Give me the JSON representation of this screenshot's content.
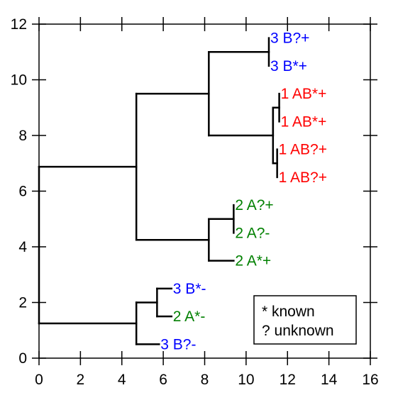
{
  "chart_data": {
    "type": "dendrogram",
    "xlim": [
      0,
      16
    ],
    "ylim": [
      0,
      12
    ],
    "x_ticks": [
      0,
      2,
      4,
      6,
      8,
      10,
      12,
      14,
      16
    ],
    "y_ticks": [
      0,
      2,
      4,
      6,
      8,
      10,
      12
    ],
    "leaves": [
      {
        "label": "3 B?+",
        "x": 11.1,
        "y": 11.5,
        "color": "#0000ff"
      },
      {
        "label": "3 B*+",
        "x": 11.1,
        "y": 10.5,
        "color": "#0000ff"
      },
      {
        "label": "1 AB*+",
        "x": 11.6,
        "y": 9.5,
        "color": "#ff0000"
      },
      {
        "label": "1 AB*+",
        "x": 11.6,
        "y": 8.5,
        "color": "#ff0000"
      },
      {
        "label": "1 AB?+",
        "x": 11.5,
        "y": 7.5,
        "color": "#ff0000"
      },
      {
        "label": "1 AB?+",
        "x": 11.5,
        "y": 6.5,
        "color": "#ff0000"
      },
      {
        "label": "2 A?+",
        "x": 9.4,
        "y": 5.5,
        "color": "#008000"
      },
      {
        "label": "2 A?-",
        "x": 9.4,
        "y": 4.5,
        "color": "#008000"
      },
      {
        "label": "2 A*+",
        "x": 9.4,
        "y": 3.5,
        "color": "#008000"
      },
      {
        "label": "3 B*-",
        "x": 6.4,
        "y": 2.5,
        "color": "#0000ff"
      },
      {
        "label": "2 A*-",
        "x": 6.4,
        "y": 1.5,
        "color": "#008000"
      },
      {
        "label": "3 B?-",
        "x": 5.8,
        "y": 0.5,
        "color": "#0000ff"
      }
    ],
    "merges": [
      {
        "x": 11.3,
        "y1": 8.0,
        "y2": 9.0
      },
      {
        "x": 11.6,
        "y1": 8.5,
        "y2": 9.5
      },
      {
        "x": 11.5,
        "y1": 6.5,
        "y2": 7.5
      },
      {
        "x": 11.1,
        "y1": 10.5,
        "y2": 11.5
      },
      {
        "x": 11.3,
        "y1": 7.0,
        "y2": 9.0
      },
      {
        "x": 8.2,
        "y1": 8.0,
        "y2": 11.0
      },
      {
        "x": 9.4,
        "y1": 4.5,
        "y2": 5.5
      },
      {
        "x": 8.2,
        "y1": 3.5,
        "y2": 5.0
      },
      {
        "x": 4.7,
        "y1": 4.25,
        "y2": 9.5
      },
      {
        "x": 5.7,
        "y1": 1.5,
        "y2": 2.5
      },
      {
        "x": 4.7,
        "y1": 0.5,
        "y2": 2.0
      },
      {
        "x": 0.0,
        "y1": 1.25,
        "y2": 6.875
      }
    ],
    "links": [
      {
        "x1": 11.3,
        "x2": 11.6,
        "y": 9.0
      },
      {
        "x1": 11.3,
        "x2": 11.5,
        "y": 7.0
      },
      {
        "x1": 8.2,
        "x2": 11.3,
        "y": 8.0
      },
      {
        "x1": 8.2,
        "x2": 11.1,
        "y": 11.0
      },
      {
        "x1": 4.7,
        "x2": 8.2,
        "y": 9.5
      },
      {
        "x1": 8.2,
        "x2": 9.4,
        "y": 5.0
      },
      {
        "x1": 8.2,
        "x2": 9.4,
        "y": 3.5
      },
      {
        "x1": 4.7,
        "x2": 8.2,
        "y": 4.25
      },
      {
        "x1": 0.0,
        "x2": 4.7,
        "y": 6.875
      },
      {
        "x1": 4.7,
        "x2": 5.7,
        "y": 2.0
      },
      {
        "x1": 5.7,
        "x2": 6.4,
        "y": 2.5
      },
      {
        "x1": 5.7,
        "x2": 6.4,
        "y": 1.5
      },
      {
        "x1": 4.7,
        "x2": 5.8,
        "y": 0.5
      },
      {
        "x1": 0.0,
        "x2": 4.7,
        "y": 1.25
      }
    ],
    "legend": {
      "position": "bottom-right",
      "entries": [
        "*  known",
        "? unknown"
      ]
    }
  }
}
